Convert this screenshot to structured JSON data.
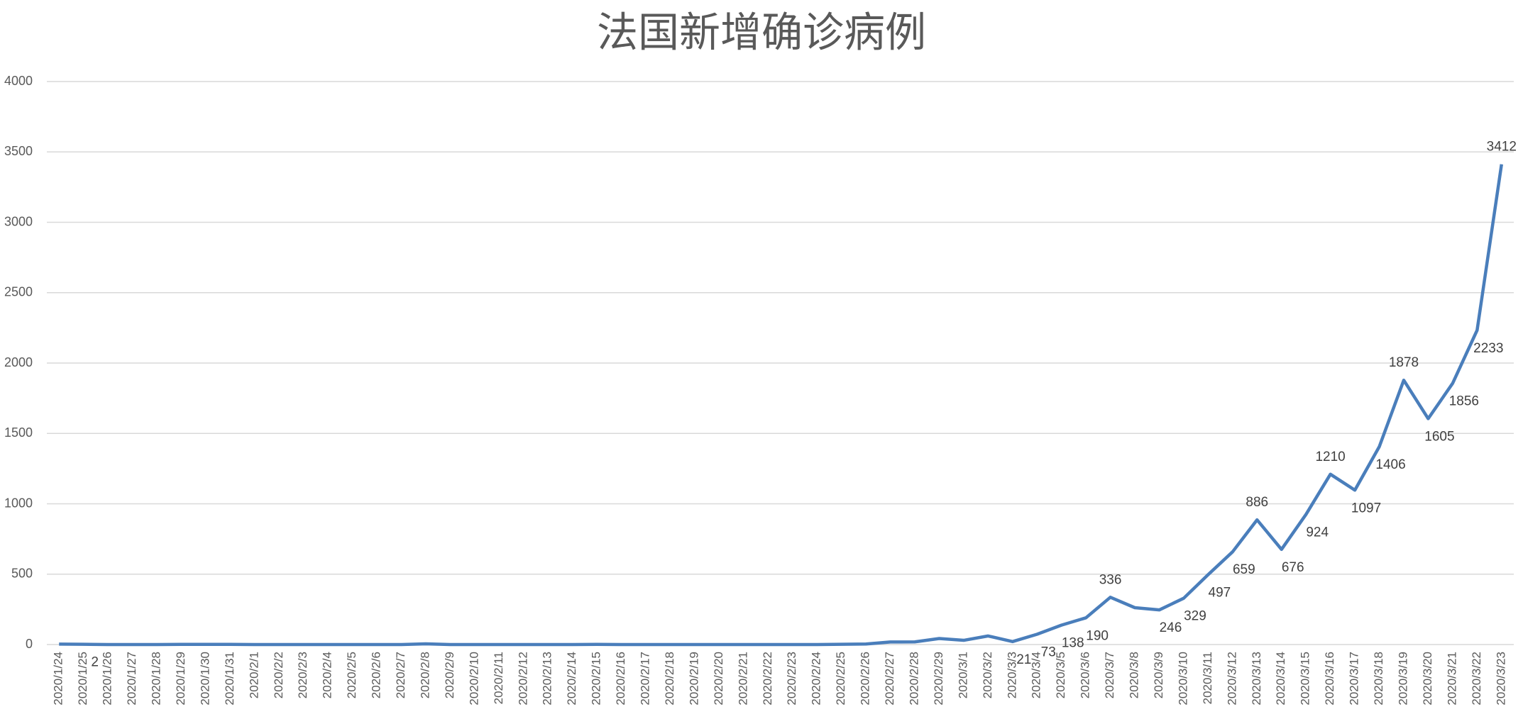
{
  "chart_data": {
    "type": "line",
    "title": "法国新增确诊病例",
    "categories": [
      "2020/1/24",
      "2020/1/25",
      "2020/1/26",
      "2020/1/27",
      "2020/1/28",
      "2020/1/29",
      "2020/1/30",
      "2020/1/31",
      "2020/2/1",
      "2020/2/2",
      "2020/2/3",
      "2020/2/4",
      "2020/2/5",
      "2020/2/6",
      "2020/2/7",
      "2020/2/8",
      "2020/2/9",
      "2020/2/10",
      "2020/2/11",
      "2020/2/12",
      "2020/2/13",
      "2020/2/14",
      "2020/2/15",
      "2020/2/16",
      "2020/2/17",
      "2020/2/18",
      "2020/2/19",
      "2020/2/20",
      "2020/2/21",
      "2020/2/22",
      "2020/2/23",
      "2020/2/24",
      "2020/2/25",
      "2020/2/26",
      "2020/2/27",
      "2020/2/28",
      "2020/2/29",
      "2020/3/1",
      "2020/3/2",
      "2020/3/3",
      "2020/3/4",
      "2020/3/5",
      "2020/3/6",
      "2020/3/7",
      "2020/3/8",
      "2020/3/9",
      "2020/3/10",
      "2020/3/11",
      "2020/3/12",
      "2020/3/13",
      "2020/3/14",
      "2020/3/15",
      "2020/3/16",
      "2020/3/17",
      "2020/3/18",
      "2020/3/19",
      "2020/3/20",
      "2020/3/21",
      "2020/3/22",
      "2020/3/23"
    ],
    "values": [
      3,
      2,
      0,
      0,
      0,
      1,
      1,
      1,
      0,
      0,
      0,
      0,
      0,
      0,
      0,
      5,
      0,
      0,
      0,
      0,
      0,
      0,
      1,
      0,
      0,
      0,
      0,
      0,
      0,
      0,
      0,
      0,
      2,
      4,
      18,
      19,
      43,
      30,
      61,
      21,
      73,
      138,
      190,
      336,
      262,
      246,
      329,
      497,
      659,
      886,
      676,
      924,
      1210,
      1097,
      1406,
      1878,
      1605,
      1856,
      2233,
      3412
    ],
    "value_labels": [
      null,
      "2",
      null,
      null,
      null,
      null,
      null,
      null,
      null,
      null,
      null,
      null,
      null,
      null,
      null,
      null,
      null,
      null,
      null,
      null,
      null,
      null,
      null,
      null,
      null,
      null,
      null,
      null,
      null,
      null,
      null,
      null,
      null,
      null,
      null,
      null,
      null,
      null,
      null,
      "21",
      "73",
      "138",
      "190",
      "336",
      null,
      "246",
      "329",
      "497",
      "659",
      "886",
      "676",
      "924",
      "1210",
      "1097",
      "1406",
      "1878",
      "1605",
      "1856",
      "2233",
      "3412"
    ],
    "color": "#4a7ebb",
    "ylim": [
      0,
      4000
    ],
    "yticks": [
      0,
      500,
      1000,
      1500,
      2000,
      2500,
      3000,
      3500,
      4000
    ],
    "grid": true
  }
}
